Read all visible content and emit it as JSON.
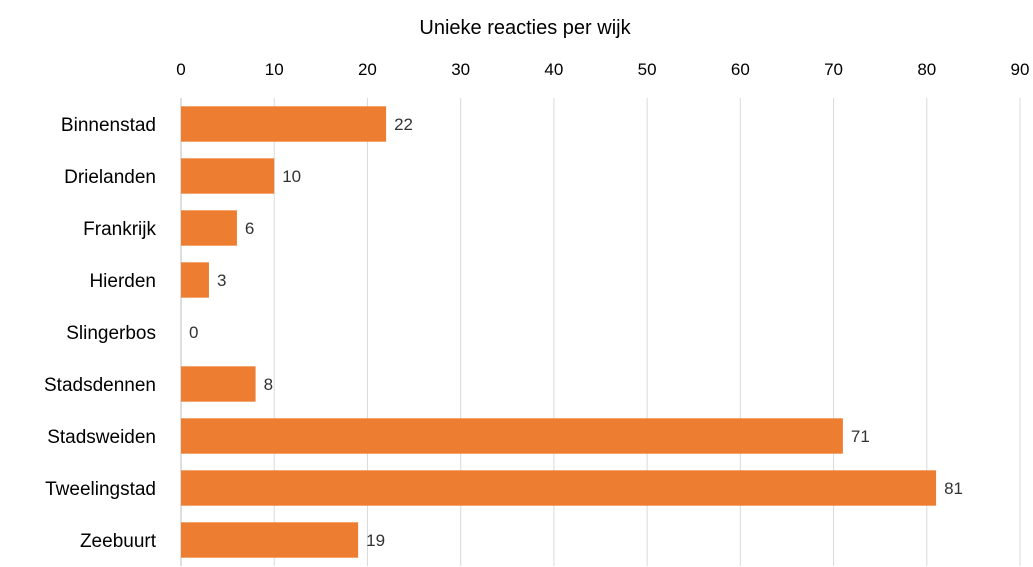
{
  "chart_data": {
    "type": "bar",
    "orientation": "horizontal",
    "title": "Unieke reacties per wijk",
    "xlabel": "",
    "ylabel": "",
    "xlim": [
      0,
      90
    ],
    "x_ticks": [
      0,
      10,
      20,
      30,
      40,
      50,
      60,
      70,
      80,
      90
    ],
    "x_axis_position": "top",
    "grid": true,
    "legend": "none",
    "data_labels": true,
    "bar_color": "#ED7D31",
    "categories": [
      "Binnenstad",
      "Drielanden",
      "Frankrijk",
      "Hierden",
      "Slingerbos",
      "Stadsdennen",
      "Stadsweiden",
      "Tweelingstad",
      "Zeebuurt"
    ],
    "values": [
      22,
      10,
      6,
      3,
      0,
      8,
      71,
      81,
      19
    ]
  }
}
